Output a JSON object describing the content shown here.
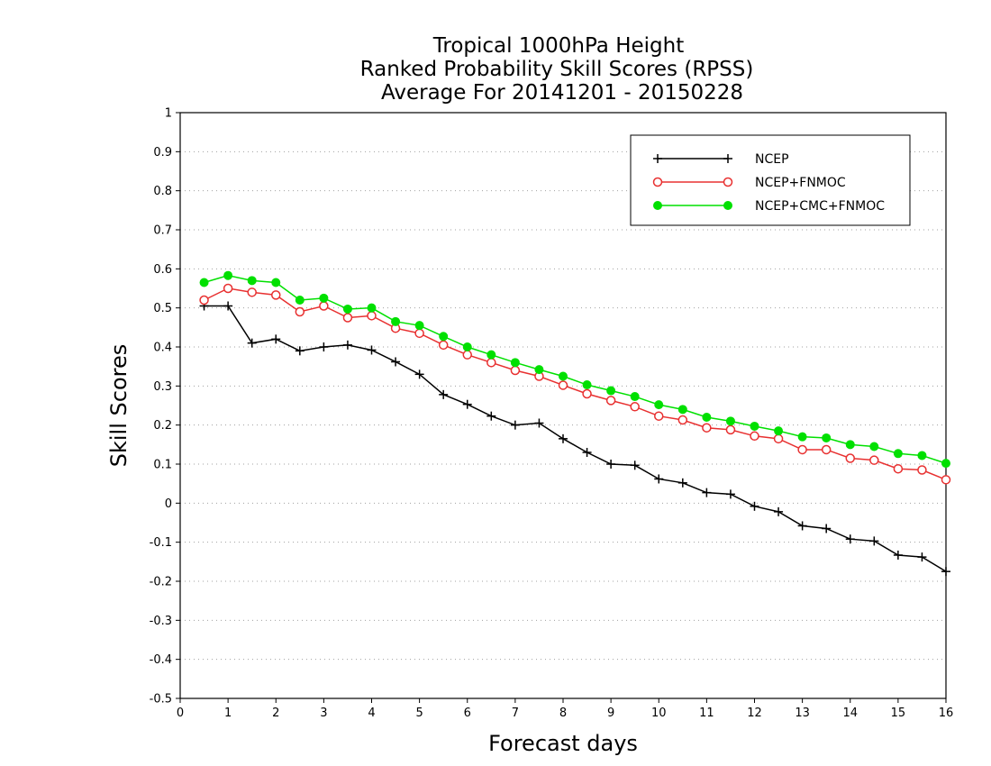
{
  "chart_data": {
    "type": "line",
    "title": [
      "Tropical 1000hPa Height",
      "Ranked Probability Skill Scores (RPSS)",
      "Average For 20141201 - 20150228"
    ],
    "xlabel": "Forecast days",
    "ylabel": "Skill Scores",
    "xlim": [
      0,
      16
    ],
    "ylim": [
      -0.5,
      1
    ],
    "xticks": [
      0,
      1,
      2,
      3,
      4,
      5,
      6,
      7,
      8,
      9,
      10,
      11,
      12,
      13,
      14,
      15,
      16
    ],
    "xtick_labels": [
      "0",
      "1",
      "2",
      "3",
      "4",
      "5",
      "6",
      "7",
      "8",
      "9",
      "10",
      "11",
      "12",
      "13",
      "14",
      "15",
      "16"
    ],
    "yticks": [
      -0.5,
      -0.4,
      -0.3,
      -0.2,
      -0.1,
      0,
      0.1,
      0.2,
      0.3,
      0.4,
      0.5,
      0.6,
      0.7,
      0.8,
      0.9,
      1
    ],
    "ytick_labels": [
      "-0.5",
      "-0.4",
      "-0.3",
      "-0.2",
      "-0.1",
      "0",
      "0.1",
      "0.2",
      "0.3",
      "0.4",
      "0.5",
      "0.6",
      "0.7",
      "0.8",
      "0.9",
      "1"
    ],
    "grid": "horizontal dotted",
    "legend_position": "top-right",
    "x": [
      0.5,
      1.0,
      1.5,
      2.0,
      2.5,
      3.0,
      3.5,
      4.0,
      4.5,
      5.0,
      5.5,
      6.0,
      6.5,
      7.0,
      7.5,
      8.0,
      8.5,
      9.0,
      9.5,
      10.0,
      10.5,
      11.0,
      11.5,
      12.0,
      12.5,
      13.0,
      13.5,
      14.0,
      14.5,
      15.0,
      15.5,
      16.0
    ],
    "series": [
      {
        "name": "NCEP",
        "color": "#000000",
        "marker": "plus",
        "values": [
          0.505,
          0.505,
          0.41,
          0.42,
          0.39,
          0.4,
          0.405,
          0.392,
          0.362,
          0.33,
          0.278,
          0.253,
          0.223,
          0.2,
          0.205,
          0.165,
          0.13,
          0.1,
          0.097,
          0.062,
          0.052,
          0.027,
          0.023,
          -0.008,
          -0.022,
          -0.058,
          -0.065,
          -0.092,
          -0.097,
          -0.133,
          -0.138,
          -0.175
        ]
      },
      {
        "name": "NCEP+FNMOC",
        "color": "#e83030",
        "marker": "open-circle",
        "values": [
          0.52,
          0.55,
          0.54,
          0.533,
          0.49,
          0.505,
          0.475,
          0.48,
          0.448,
          0.435,
          0.405,
          0.38,
          0.36,
          0.34,
          0.325,
          0.302,
          0.28,
          0.263,
          0.247,
          0.223,
          0.213,
          0.193,
          0.188,
          0.172,
          0.165,
          0.137,
          0.137,
          0.115,
          0.11,
          0.088,
          0.085,
          0.06
        ]
      },
      {
        "name": "NCEP+CMC+FNMOC",
        "color": "#00e000",
        "marker": "filled-circle",
        "values": [
          0.565,
          0.583,
          0.57,
          0.565,
          0.52,
          0.525,
          0.497,
          0.5,
          0.465,
          0.455,
          0.427,
          0.4,
          0.38,
          0.36,
          0.342,
          0.325,
          0.303,
          0.288,
          0.273,
          0.252,
          0.24,
          0.22,
          0.21,
          0.197,
          0.185,
          0.17,
          0.167,
          0.15,
          0.145,
          0.127,
          0.122,
          0.102
        ]
      }
    ]
  }
}
